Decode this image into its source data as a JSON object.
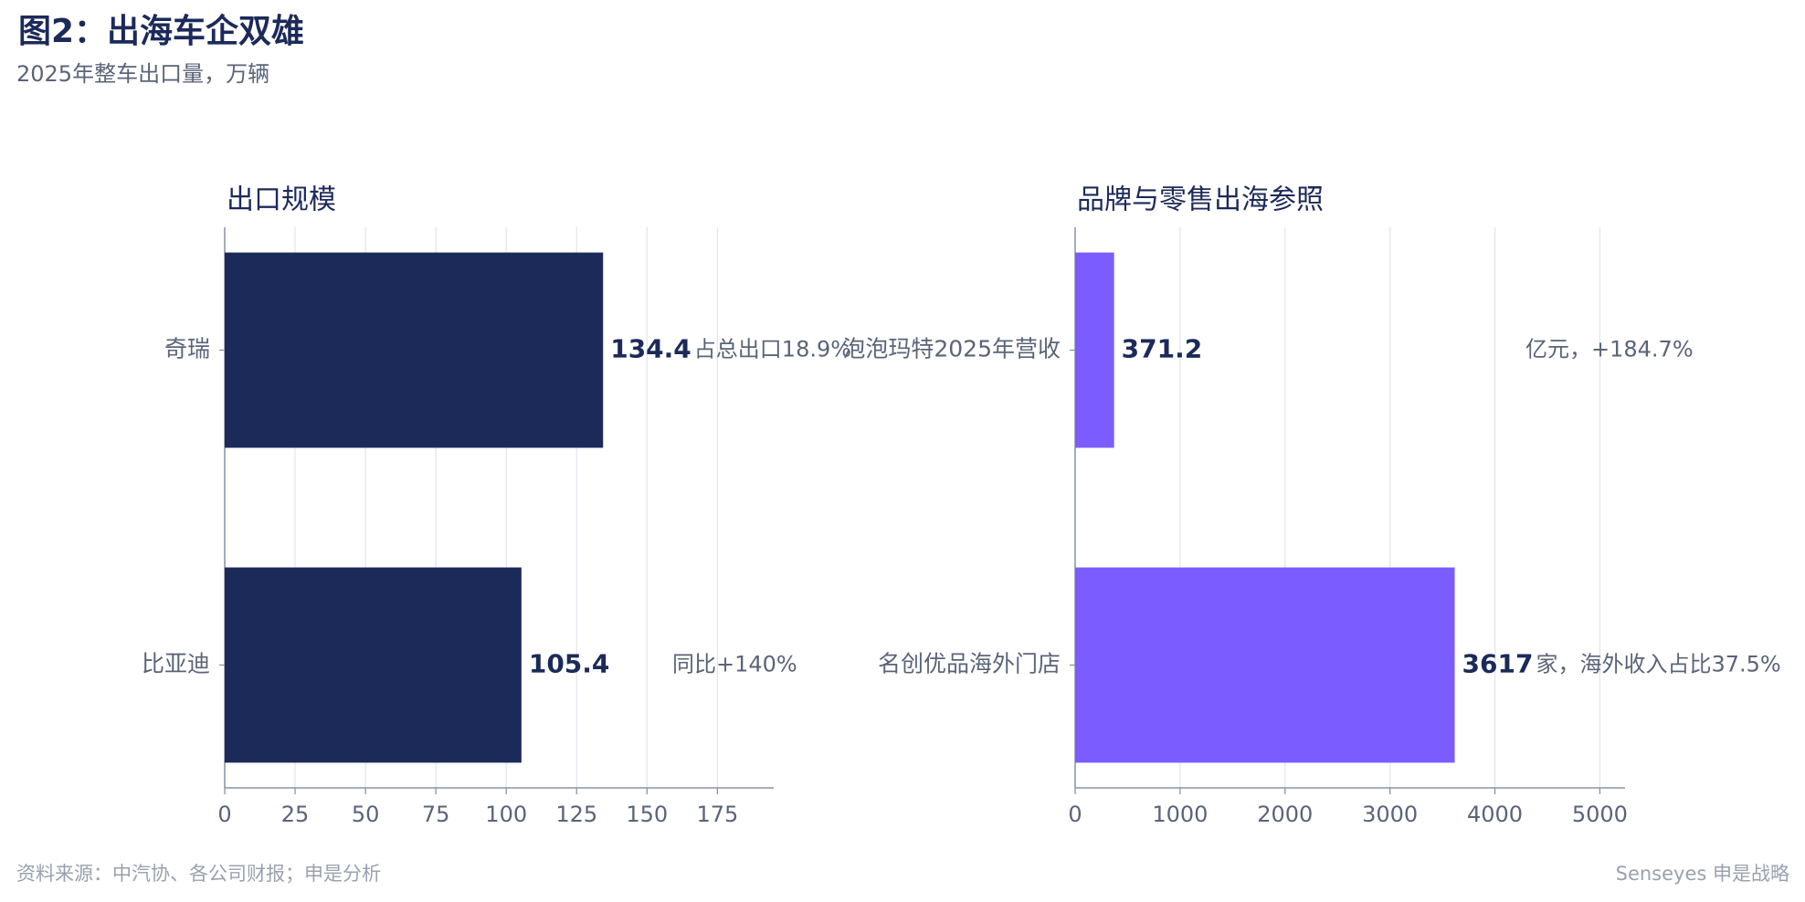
{
  "title": "图2：出海车企双雄",
  "subtitle": "2025年整车出口量，万辆",
  "source": "资料来源：中汽协、各公司财报；申是分析",
  "brand": "Senseyes 申是战略",
  "chart_data": [
    {
      "type": "barh",
      "title": "出口规模",
      "categories": [
        "奇瑞",
        "比亚迪"
      ],
      "values": [
        134.4,
        105.4
      ],
      "annotations": [
        "占总出口18.9%",
        "同比+140%"
      ],
      "color": "#1c2a5a",
      "xlim": [
        0,
        195
      ],
      "xticks": [
        0,
        25,
        50,
        75,
        100,
        125,
        150,
        175
      ],
      "grid": true
    },
    {
      "type": "barh",
      "title": "品牌与零售出海参照",
      "categories": [
        "泡泡玛特2025年营收",
        "名创优品海外门店"
      ],
      "values": [
        371.2,
        3617
      ],
      "annotations": [
        "亿元，+184.7%",
        "家，海外收入占比37.5%"
      ],
      "color": "#7b5cff",
      "xlim": [
        0,
        5240
      ],
      "xticks": [
        0,
        1000,
        2000,
        3000,
        4000,
        5000
      ],
      "grid": true
    }
  ]
}
